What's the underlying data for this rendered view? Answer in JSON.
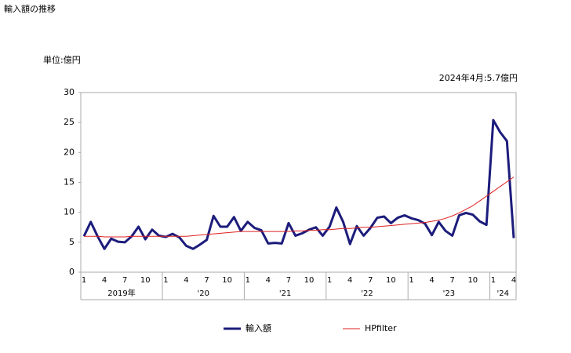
{
  "chart_data": {
    "type": "line",
    "title": "輸入額の推移",
    "unit_label": "単位:億円",
    "annotation": "2024年4月:5.7億円",
    "categories": [
      "1",
      null,
      null,
      "4",
      null,
      null,
      "7",
      null,
      null,
      "10",
      null,
      null,
      "1",
      null,
      null,
      "4",
      null,
      null,
      "7",
      null,
      null,
      "10",
      null,
      null,
      "1",
      null,
      null,
      "4",
      null,
      null,
      "7",
      null,
      null,
      "10",
      null,
      null,
      "1",
      null,
      null,
      "4",
      null,
      null,
      "7",
      null,
      null,
      "10",
      null,
      null,
      "1",
      null,
      null,
      "4",
      null,
      null,
      "7",
      null,
      null,
      "10",
      null,
      null,
      "1",
      null,
      null,
      "4"
    ],
    "year_labels": [
      "2019年",
      "'20",
      "'21",
      "'22",
      "'23",
      "'24"
    ],
    "series": [
      {
        "name": "輸入額",
        "color": "#1c1c7c",
        "width": 3,
        "values": [
          6.0,
          8.4,
          6.0,
          3.9,
          5.6,
          5.1,
          5.0,
          6.0,
          7.6,
          5.5,
          7.1,
          6.1,
          5.9,
          6.4,
          5.8,
          4.4,
          3.9,
          4.6,
          5.4,
          9.4,
          7.6,
          7.6,
          9.2,
          6.9,
          8.4,
          7.4,
          7.0,
          4.8,
          4.9,
          4.8,
          8.2,
          6.1,
          6.5,
          7.1,
          7.5,
          6.1,
          7.6,
          10.8,
          8.4,
          4.7,
          7.7,
          6.1,
          7.4,
          9.1,
          9.3,
          8.2,
          9.1,
          9.5,
          9.0,
          8.7,
          8.1,
          6.2,
          8.4,
          6.9,
          6.1,
          9.5,
          9.9,
          9.6,
          8.5,
          7.9,
          25.4,
          23.4,
          21.9,
          5.7
        ]
      },
      {
        "name": "HPfilter",
        "color": "#e02020",
        "width": 1,
        "values": [
          6.0,
          6.0,
          6.0,
          5.9,
          5.9,
          5.9,
          5.9,
          6.0,
          6.0,
          6.0,
          6.0,
          6.0,
          6.0,
          6.0,
          6.0,
          6.0,
          6.1,
          6.2,
          6.3,
          6.4,
          6.5,
          6.6,
          6.7,
          6.8,
          6.8,
          6.8,
          6.8,
          6.8,
          6.8,
          6.8,
          6.8,
          6.9,
          6.9,
          7.0,
          7.0,
          7.1,
          7.1,
          7.2,
          7.3,
          7.3,
          7.4,
          7.5,
          7.5,
          7.6,
          7.7,
          7.8,
          7.9,
          8.0,
          8.1,
          8.2,
          8.3,
          8.5,
          8.7,
          9.0,
          9.4,
          9.9,
          10.5,
          11.1,
          11.9,
          12.7,
          13.5,
          14.3,
          15.1,
          15.9
        ]
      }
    ],
    "ylim": [
      0,
      30
    ],
    "yticks": [
      0,
      5,
      10,
      15,
      20,
      25,
      30
    ],
    "grid": false
  }
}
